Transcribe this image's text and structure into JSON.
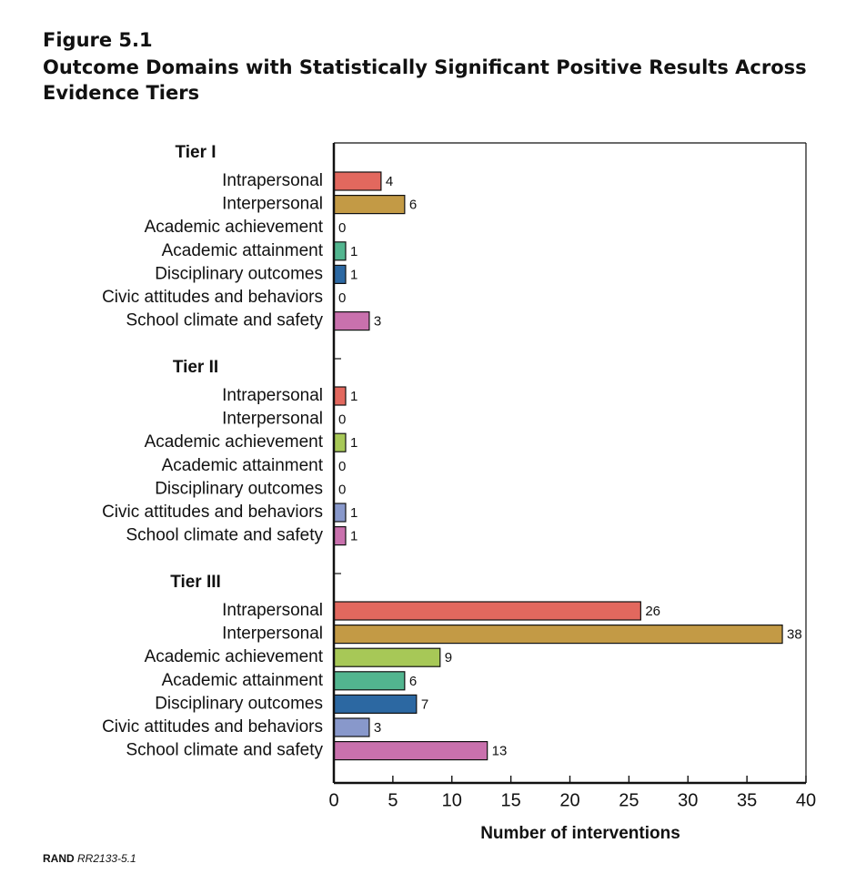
{
  "figure": {
    "label": "Figure 5.1",
    "title": "Outcome Domains with Statistically Significant Positive Results Across Evidence Tiers"
  },
  "credit": {
    "org": "RAND",
    "code": "RR2133-5.1"
  },
  "chart_data": {
    "type": "bar",
    "orientation": "horizontal",
    "xlabel": "Number of interventions",
    "xlim": [
      0,
      40
    ],
    "xticks": [
      0,
      5,
      10,
      15,
      20,
      25,
      30,
      35,
      40
    ],
    "grid": false,
    "groups": [
      {
        "name": "Tier I",
        "categories": [
          "Intrapersonal",
          "Interpersonal",
          "Academic achievement",
          "Academic attainment",
          "Disciplinary outcomes",
          "Civic attitudes and behaviors",
          "School climate and safety"
        ],
        "values": [
          4,
          6,
          0,
          1,
          1,
          0,
          3
        ]
      },
      {
        "name": "Tier II",
        "categories": [
          "Intrapersonal",
          "Interpersonal",
          "Academic achievement",
          "Academic attainment",
          "Disciplinary outcomes",
          "Civic attitudes and behaviors",
          "School climate and safety"
        ],
        "values": [
          1,
          0,
          1,
          0,
          0,
          1,
          1
        ]
      },
      {
        "name": "Tier III",
        "categories": [
          "Intrapersonal",
          "Interpersonal",
          "Academic achievement",
          "Academic attainment",
          "Disciplinary outcomes",
          "Civic attitudes and behaviors",
          "School climate and safety"
        ],
        "values": [
          26,
          38,
          9,
          6,
          7,
          3,
          13
        ]
      }
    ],
    "colors": {
      "Intrapersonal": "#e2685e",
      "Interpersonal": "#c39a45",
      "Academic achievement": "#a7c857",
      "Academic attainment": "#52b58f",
      "Disciplinary outcomes": "#2c68a2",
      "Civic attitudes and behaviors": "#8898cb",
      "School climate and safety": "#c971ad"
    }
  }
}
